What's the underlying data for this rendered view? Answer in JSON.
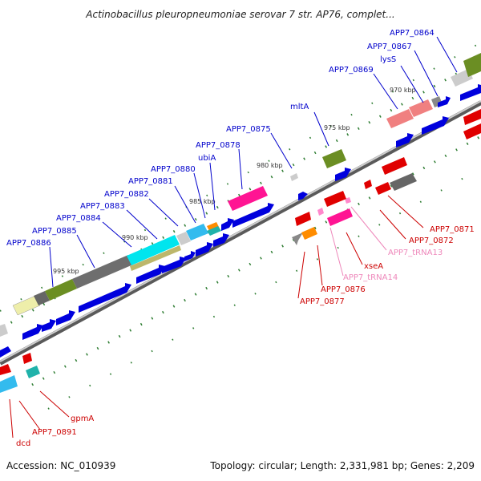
{
  "title": "Actinobacillus pleuropneumoniae serovar 7 str. AP76, complet...",
  "accession": "Accession: NC_010939",
  "topology": "Topology: circular; Length: 2,331,981 bp; Genes: 2,209",
  "colors": {
    "label_blue": "#0000cc",
    "label_red": "#cc0000",
    "label_pink": "#ee88bb",
    "backbone": "#888888",
    "tick": "#2e7d32"
  },
  "scale_labels": [
    "970 kbp",
    "975 kbp",
    "980 kbp",
    "985 kbp",
    "990 kbp",
    "995 kbp"
  ],
  "upper_labels": [
    {
      "id": "APP7_0864",
      "text": "APP7_0864"
    },
    {
      "id": "APP7_0867",
      "text": "APP7_0867"
    },
    {
      "id": "lysS",
      "text": "lysS"
    },
    {
      "id": "APP7_0869",
      "text": "APP7_0869"
    },
    {
      "id": "mltA",
      "text": "mltA"
    },
    {
      "id": "APP7_0875",
      "text": "APP7_0875"
    },
    {
      "id": "APP7_0878",
      "text": "APP7_0878"
    },
    {
      "id": "ubiA",
      "text": "ubiA"
    },
    {
      "id": "APP7_0880",
      "text": "APP7_0880"
    },
    {
      "id": "APP7_0881",
      "text": "APP7_0881"
    },
    {
      "id": "APP7_0882",
      "text": "APP7_0882"
    },
    {
      "id": "APP7_0883",
      "text": "APP7_0883"
    },
    {
      "id": "APP7_0884",
      "text": "APP7_0884"
    },
    {
      "id": "APP7_0885",
      "text": "APP7_0885"
    },
    {
      "id": "APP7_0886",
      "text": "APP7_0886"
    }
  ],
  "lower_labels": [
    {
      "id": "APP7_0871",
      "text": "APP7_0871",
      "color": "red"
    },
    {
      "id": "APP7_0872",
      "text": "APP7_0872",
      "color": "red"
    },
    {
      "id": "APP7_tRNA13",
      "text": "APP7_tRNA13",
      "color": "pink"
    },
    {
      "id": "xseA",
      "text": "xseA",
      "color": "red"
    },
    {
      "id": "APP7_tRNA14",
      "text": "APP7_tRNA14",
      "color": "pink"
    },
    {
      "id": "APP7_0876",
      "text": "APP7_0876",
      "color": "red"
    },
    {
      "id": "APP7_0877",
      "text": "APP7_0877",
      "color": "red"
    },
    {
      "id": "gpmA",
      "text": "gpmA",
      "color": "red"
    },
    {
      "id": "APP7_0891",
      "text": "APP7_0891",
      "color": "red"
    },
    {
      "id": "dcd",
      "text": "dcd",
      "color": "red"
    }
  ]
}
